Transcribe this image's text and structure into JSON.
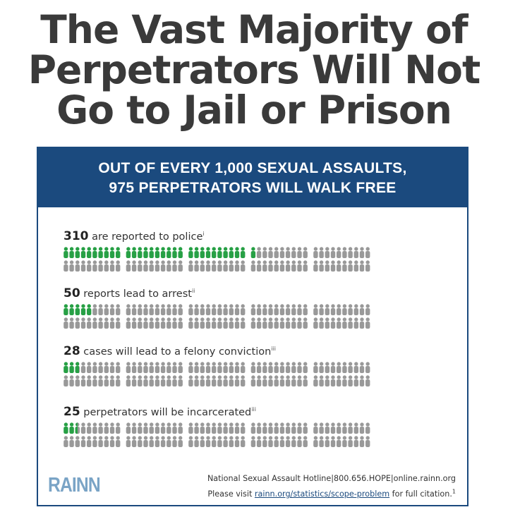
{
  "headline": {
    "line1": "The Vast Majority of",
    "line2": "Perpetrators Will Not",
    "line3": "Go to Jail or Prison"
  },
  "banner": {
    "line1": "OUT OF EVERY 1,000 SEXUAL ASSAULTS,",
    "line2": "975 PERPETRATORS WILL WALK FREE"
  },
  "total_per_row": 1000,
  "stats": [
    {
      "number": "310",
      "text": "are reported to police",
      "note": "i",
      "highlighted": 31
    },
    {
      "number": "50",
      "text": "reports lead to arrest",
      "note": "ii",
      "highlighted": 5
    },
    {
      "number": "28",
      "text": "cases will lead to a felony conviction",
      "note": "iii",
      "highlighted": 2.8
    },
    {
      "number": "25",
      "text": "perpetrators will be incarcerated",
      "note": "iii",
      "highlighted": 2.5
    }
  ],
  "colors": {
    "highlight": "#27a045",
    "muted": "#999999",
    "banner": "#1b4a7e",
    "logo": "#7aa4c6"
  },
  "icon_name": "person-icon",
  "footer": {
    "logo": "RAINN",
    "hotline": "National Sexual Assault Hotline|800.656.HOPE|online.rainn.org",
    "visit_prefix": "Please visit ",
    "visit_link": "rainn.org/statistics/scope-problem",
    "visit_suffix": " for full citation.",
    "visit_note": "1"
  }
}
